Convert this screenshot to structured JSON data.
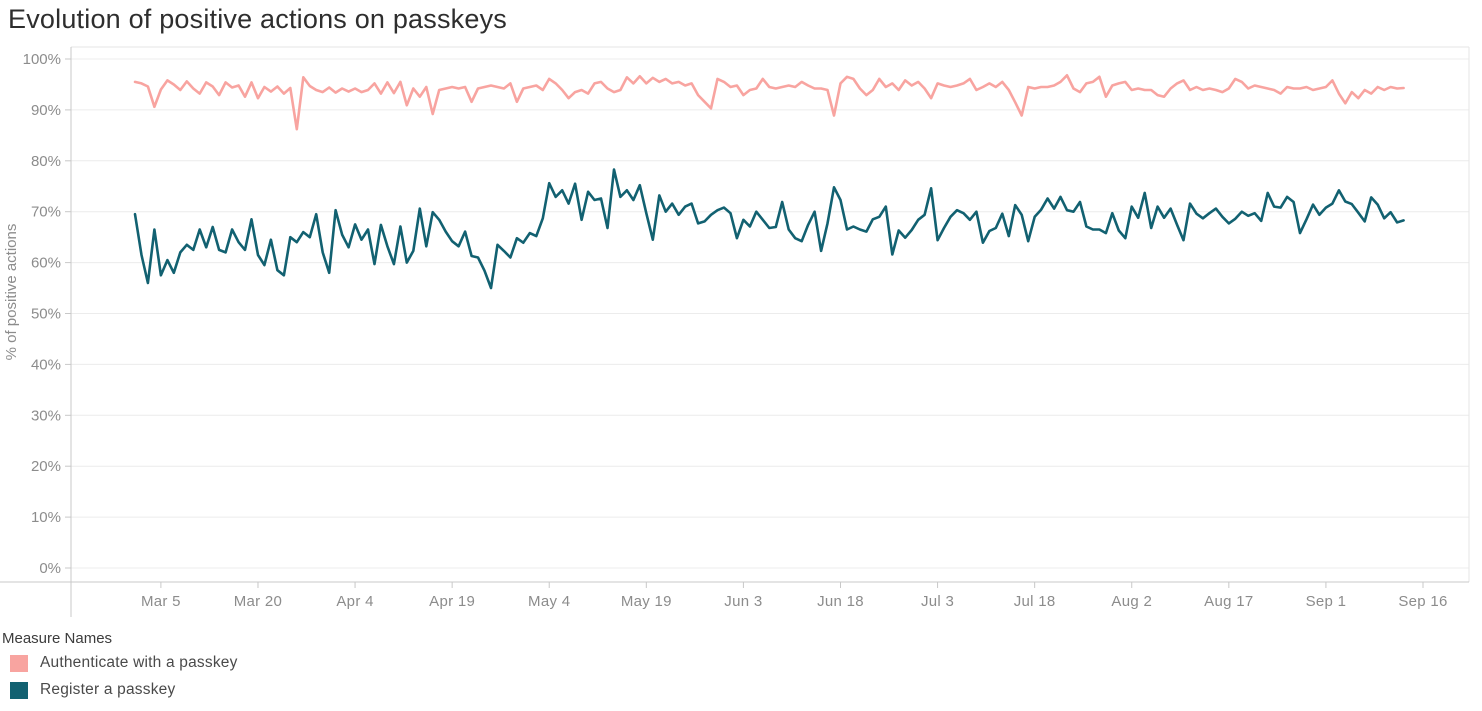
{
  "title": "Evolution of positive actions on passkeys",
  "legend": {
    "title": "Measure Names",
    "items": [
      {
        "label": "Authenticate with a passkey",
        "color": "#f8a4a0"
      },
      {
        "label": "Register a passkey",
        "color": "#126171"
      }
    ]
  },
  "colors": {
    "authenticate": "#f8a4a0",
    "register": "#126171",
    "gridline": "#ececec",
    "axis_rule": "#c8c8c8",
    "plot_border": "#e6e6e6",
    "tick_label": "#8c8c8c",
    "axis_title": "#8c8c8c"
  },
  "chart_data": {
    "type": "line",
    "title": "Evolution of positive actions on passkeys",
    "xlabel": "",
    "ylabel": "% of positive actions",
    "ylim": [
      0,
      100
    ],
    "grid": "horizontal",
    "legend_position": "bottom-left",
    "y_tick_labels": [
      "0%",
      "10%",
      "20%",
      "30%",
      "40%",
      "50%",
      "60%",
      "70%",
      "80%",
      "90%",
      "100%"
    ],
    "y_tick_values": [
      0,
      10,
      20,
      30,
      40,
      50,
      60,
      70,
      80,
      90,
      100
    ],
    "x_tick_labels": [
      "Mar 5",
      "Mar 20",
      "Apr 4",
      "Apr 19",
      "May 4",
      "May 19",
      "Jun 3",
      "Jun 18",
      "Jul 3",
      "Jul 18",
      "Aug 2",
      "Aug 17",
      "Sep 1",
      "Sep 16"
    ],
    "x_tick_days": [
      4,
      19,
      34,
      49,
      64,
      79,
      94,
      109,
      124,
      139,
      154,
      169,
      184,
      199
    ],
    "x_unit": "daily values, day 0 = Mar 1, last day 196 = Sep 13",
    "series": [
      {
        "name": "Authenticate with a passkey",
        "color": "#f8a4a0",
        "values": [
          95.5,
          95.2,
          94.6,
          90.6,
          94.0,
          95.8,
          95.0,
          93.9,
          95.6,
          94.2,
          93.2,
          95.4,
          94.6,
          92.9,
          95.4,
          94.4,
          94.8,
          92.6,
          95.4,
          92.3,
          94.5,
          93.6,
          94.6,
          93.2,
          94.3,
          86.2,
          96.4,
          94.7,
          93.9,
          93.5,
          94.4,
          93.4,
          94.2,
          93.6,
          94.2,
          93.5,
          93.9,
          95.2,
          93.2,
          95.4,
          93.3,
          95.5,
          90.9,
          94.2,
          92.6,
          94.5,
          89.2,
          93.9,
          94.2,
          94.5,
          94.2,
          94.5,
          91.6,
          94.2,
          94.5,
          94.8,
          94.5,
          94.2,
          95.2,
          91.6,
          94.2,
          94.5,
          94.8,
          93.9,
          96.1,
          95.2,
          93.9,
          92.3,
          93.5,
          93.9,
          93.2,
          95.2,
          95.5,
          94.2,
          93.5,
          93.9,
          96.4,
          95.2,
          96.6,
          95.2,
          96.3,
          95.5,
          96.1,
          95.2,
          95.5,
          94.8,
          95.2,
          92.9,
          91.6,
          90.3,
          96.1,
          95.5,
          94.5,
          94.8,
          92.9,
          93.9,
          94.2,
          96.1,
          94.5,
          94.2,
          94.5,
          94.8,
          94.5,
          95.5,
          94.8,
          94.2,
          94.2,
          93.9,
          88.9,
          95.2,
          96.5,
          96.1,
          94.2,
          92.9,
          93.9,
          96.1,
          94.5,
          95.2,
          93.9,
          95.8,
          94.8,
          95.5,
          94.2,
          92.3,
          95.2,
          94.8,
          94.5,
          94.8,
          95.2,
          96.1,
          93.9,
          94.5,
          95.2,
          94.5,
          95.5,
          93.9,
          91.5,
          88.9,
          94.5,
          94.2,
          94.5,
          94.5,
          94.8,
          95.5,
          96.8,
          94.2,
          93.5,
          95.2,
          95.5,
          96.5,
          92.6,
          94.8,
          95.2,
          95.5,
          93.9,
          94.2,
          93.9,
          93.9,
          92.9,
          92.6,
          94.2,
          95.2,
          95.8,
          93.9,
          94.5,
          93.9,
          94.2,
          93.9,
          93.5,
          94.2,
          96.1,
          95.5,
          94.2,
          94.8,
          94.5,
          94.2,
          93.9,
          93.2,
          94.5,
          94.2,
          94.2,
          94.5,
          93.9,
          94.2,
          94.5,
          95.8,
          93.2,
          91.3,
          93.5,
          92.3,
          93.9,
          93.2,
          94.5,
          93.9,
          94.5,
          94.2,
          94.3
        ]
      },
      {
        "name": "Register a passkey",
        "color": "#126171",
        "values": [
          69.5,
          61.5,
          56.0,
          66.5,
          57.5,
          60.5,
          58.0,
          62.0,
          63.5,
          62.5,
          66.5,
          63.0,
          67.0,
          62.5,
          62.0,
          66.5,
          64.0,
          62.5,
          68.5,
          61.5,
          59.5,
          64.5,
          58.5,
          57.5,
          65.0,
          64.0,
          66.0,
          65.0,
          69.5,
          62.0,
          58.0,
          70.3,
          65.5,
          63.0,
          67.5,
          64.5,
          66.5,
          59.7,
          67.4,
          63.2,
          59.7,
          67.1,
          60.0,
          62.3,
          70.6,
          63.2,
          69.9,
          68.4,
          66.1,
          64.2,
          63.2,
          66.1,
          61.3,
          61.0,
          58.4,
          55.0,
          63.5,
          62.3,
          61.0,
          64.8,
          63.9,
          65.8,
          65.2,
          68.7,
          75.6,
          72.9,
          74.2,
          71.6,
          75.5,
          68.4,
          73.9,
          72.3,
          72.6,
          66.8,
          78.3,
          72.9,
          74.2,
          72.3,
          75.2,
          69.7,
          64.5,
          73.2,
          70.0,
          71.6,
          69.4,
          71.0,
          71.6,
          67.7,
          68.1,
          69.4,
          70.3,
          70.8,
          69.7,
          64.8,
          68.4,
          67.1,
          70.0,
          68.4,
          66.8,
          67.0,
          71.9,
          66.5,
          64.8,
          64.2,
          67.4,
          70.0,
          62.3,
          67.7,
          74.8,
          72.3,
          66.5,
          67.1,
          66.5,
          66.1,
          68.5,
          69.0,
          71.0,
          61.6,
          66.3,
          64.9,
          66.4,
          68.4,
          69.4,
          74.6,
          64.4,
          66.8,
          69.0,
          70.3,
          69.7,
          68.4,
          70.0,
          63.9,
          66.2,
          66.8,
          69.6,
          65.2,
          71.3,
          69.4,
          64.2,
          69.0,
          70.4,
          72.6,
          70.6,
          72.9,
          70.3,
          70.0,
          71.9,
          67.1,
          66.5,
          66.5,
          65.8,
          69.7,
          66.3,
          64.8,
          71.0,
          68.8,
          73.7,
          66.8,
          71.0,
          68.8,
          70.6,
          67.4,
          64.4,
          71.6,
          69.6,
          68.7,
          69.7,
          70.6,
          69.0,
          67.7,
          68.6,
          70.0,
          69.2,
          69.7,
          68.2,
          73.7,
          71.0,
          70.8,
          72.9,
          71.9,
          65.8,
          68.5,
          71.4,
          69.4,
          70.8,
          71.6,
          74.2,
          72.0,
          71.5,
          69.8,
          68.1,
          72.8,
          71.4,
          68.7,
          69.9,
          67.9,
          68.3
        ]
      }
    ]
  }
}
